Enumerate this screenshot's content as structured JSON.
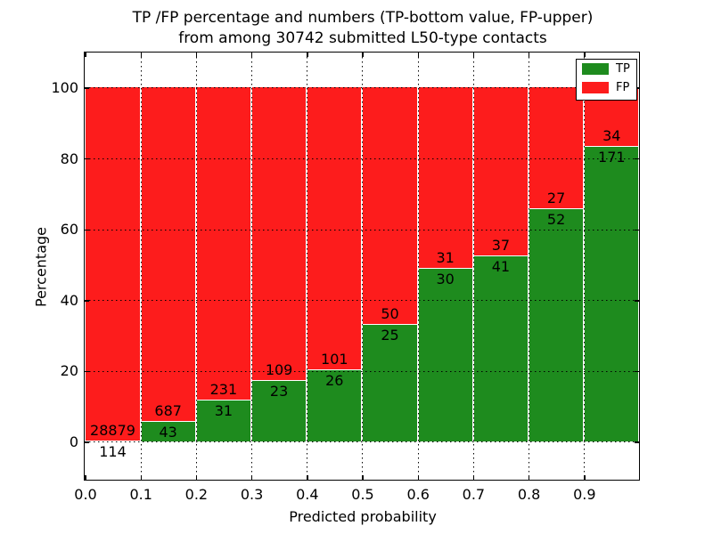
{
  "figure": {
    "title_line1": "TP /FP percentage and numbers (TP-bottom value, FP-upper)",
    "title_line2": "from among 30742 submitted L50-type contacts",
    "xlabel": "Predicted probability",
    "ylabel": "Percentage"
  },
  "chart_data": {
    "type": "bar",
    "stacked": true,
    "normalized": "percent",
    "title": "TP /FP percentage and numbers (TP-bottom value, FP-upper) from among 30742 submitted L50-type contacts",
    "xlabel": "Predicted probability",
    "ylabel": "Percentage",
    "total_contacts": 30742,
    "bin_width": 0.1,
    "x_bin_starts": [
      0.0,
      0.1,
      0.2,
      0.3,
      0.4,
      0.5,
      0.6,
      0.7,
      0.8,
      0.9
    ],
    "x_tick_labels": [
      "0.0",
      "0.1",
      "0.2",
      "0.3",
      "0.4",
      "0.5",
      "0.6",
      "0.7",
      "0.8",
      "0.9"
    ],
    "y_ticks": [
      0,
      20,
      40,
      60,
      80,
      100
    ],
    "xlim": [
      0.0,
      1.0
    ],
    "ylim": [
      -10.8,
      110
    ],
    "grid": {
      "style": "dotted",
      "color": "#000000",
      "on_top": true
    },
    "legend": {
      "position": "upper right",
      "entries": [
        "TP",
        "FP"
      ]
    },
    "annotation_rule": "at each bar's TP/FP boundary: FP count printed above, TP count printed below",
    "series": [
      {
        "name": "TP",
        "color": "#1e8b1e",
        "counts": [
          114,
          43,
          31,
          23,
          26,
          25,
          30,
          41,
          52,
          171
        ],
        "percent": [
          0.39,
          5.89,
          11.83,
          17.42,
          20.47,
          33.33,
          49.18,
          52.56,
          65.82,
          83.41
        ]
      },
      {
        "name": "FP",
        "color": "#fd1c1c",
        "counts": [
          28879,
          687,
          231,
          109,
          101,
          50,
          31,
          37,
          27,
          34
        ],
        "percent": [
          99.61,
          94.11,
          88.17,
          82.58,
          79.53,
          66.67,
          50.82,
          47.44,
          34.18,
          16.59
        ]
      }
    ]
  }
}
